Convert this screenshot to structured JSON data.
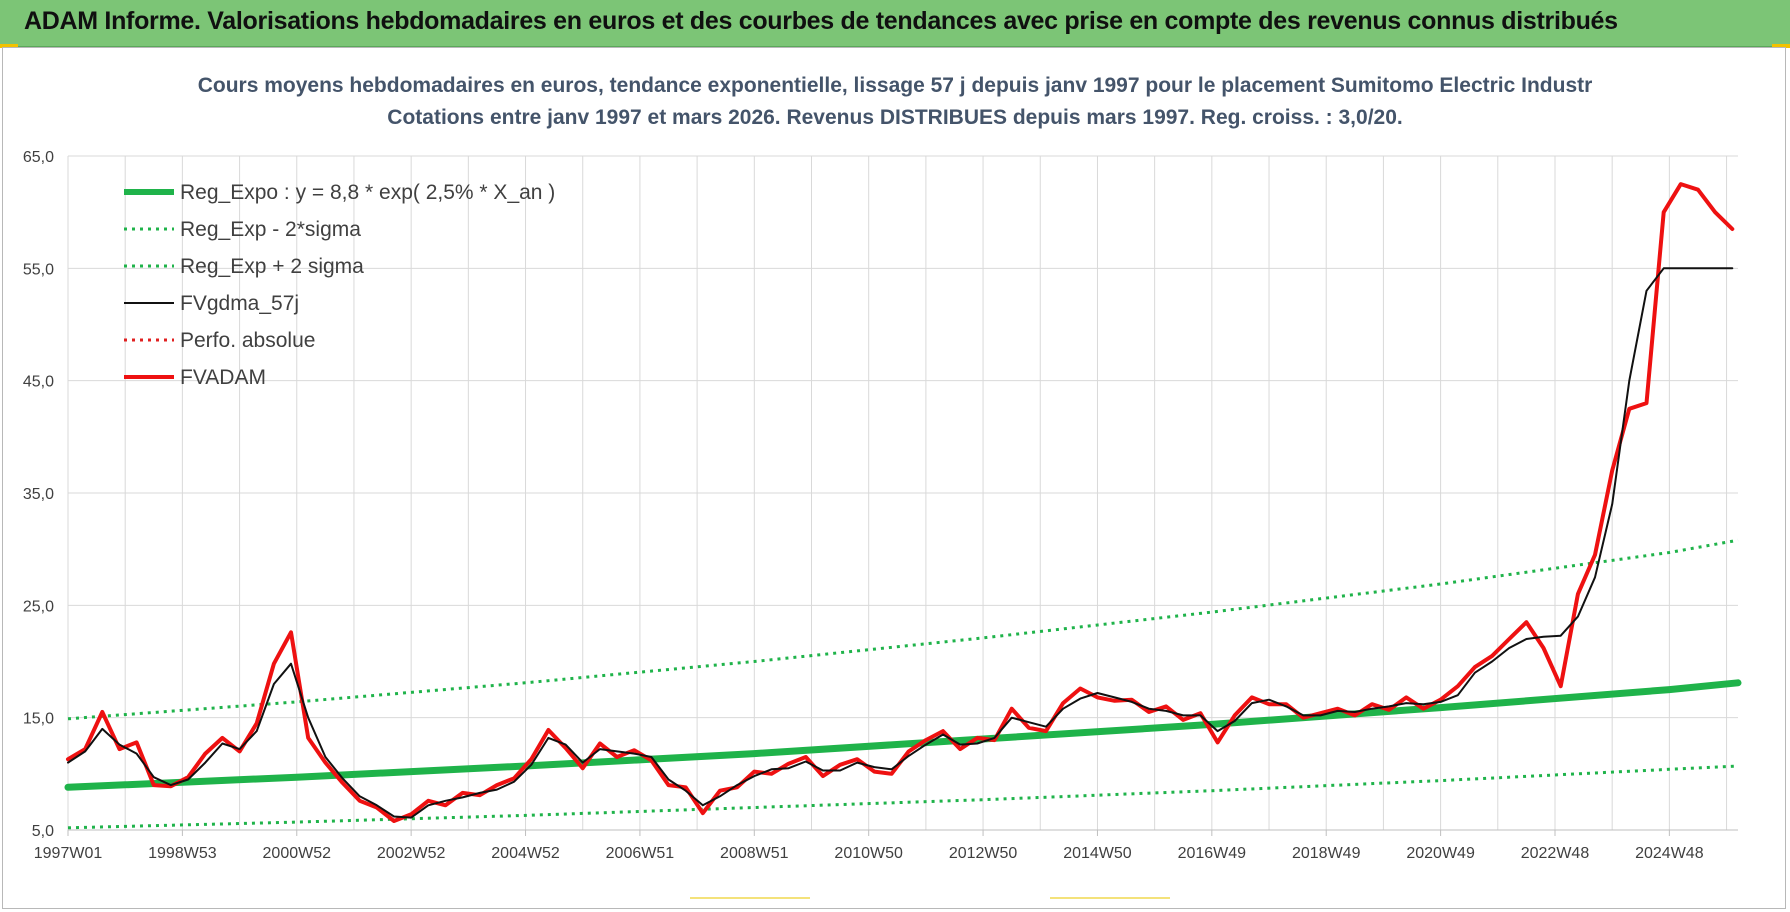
{
  "banner": {
    "text": "ADAM Informe. Valorisations hebdomadaires en euros et des courbes de tendances avec prise en compte des revenus connus distribués",
    "background": "#7cc576"
  },
  "chart_data": {
    "type": "line",
    "title": [
      "Cours moyens hebdomadaires en euros, tendance exponentielle, lissage 57 j depuis janv 1997  pour le placement Sumitomo Electric Industr",
      "Cotations entre janv 1997 et mars 2026. Revenus DISTRIBUES depuis mars 1997.  Reg. croiss. : 3,0/20."
    ],
    "xlabel": "",
    "ylabel": "",
    "ylim": [
      5,
      65
    ],
    "yticks": [
      "5,0",
      "15,0",
      "25,0",
      "35,0",
      "45,0",
      "55,0",
      "65,0"
    ],
    "xlim": [
      1997.0,
      2026.2
    ],
    "xticks": [
      {
        "label": "1997W01",
        "x": 1997.0
      },
      {
        "label": "1998W53",
        "x": 1999.0
      },
      {
        "label": "2000W52",
        "x": 2001.0
      },
      {
        "label": "2002W52",
        "x": 2003.0
      },
      {
        "label": "2004W52",
        "x": 2005.0
      },
      {
        "label": "2006W51",
        "x": 2007.0
      },
      {
        "label": "2008W51",
        "x": 2009.0
      },
      {
        "label": "2010W50",
        "x": 2011.0
      },
      {
        "label": "2012W50",
        "x": 2013.0
      },
      {
        "label": "2014W50",
        "x": 2015.0
      },
      {
        "label": "2016W49",
        "x": 2017.0
      },
      {
        "label": "2018W49",
        "x": 2019.0
      },
      {
        "label": "2020W49",
        "x": 2021.0
      },
      {
        "label": "2022W48",
        "x": 2023.0
      },
      {
        "label": "2024W48",
        "x": 2025.0
      }
    ],
    "grid": true,
    "legend_position": "top-left",
    "series": [
      {
        "name": "Reg_Expo : y = 8,8 * exp( 2,5% *  X_an )",
        "style": "solid-thick",
        "color": "#1fb34a",
        "x": [
          1997.0,
          2001.0,
          2005.0,
          2009.0,
          2013.0,
          2017.0,
          2021.0,
          2025.0,
          2026.2
        ],
        "values": [
          8.8,
          9.7,
          10.7,
          11.8,
          13.1,
          14.4,
          15.9,
          17.5,
          18.1
        ]
      },
      {
        "name": "Reg_Exp - 2*sigma",
        "style": "dotted",
        "color": "#1fb34a",
        "x": [
          1997.0,
          2001.0,
          2005.0,
          2009.0,
          2013.0,
          2017.0,
          2021.0,
          2025.0,
          2026.2
        ],
        "values": [
          5.2,
          5.7,
          6.3,
          7.0,
          7.7,
          8.5,
          9.4,
          10.4,
          10.7
        ]
      },
      {
        "name": "Reg_Exp + 2 sigma",
        "style": "dotted",
        "color": "#1fb34a",
        "x": [
          1997.0,
          2001.0,
          2005.0,
          2009.0,
          2013.0,
          2017.0,
          2021.0,
          2025.0,
          2026.2
        ],
        "values": [
          14.9,
          16.4,
          18.1,
          20.0,
          22.1,
          24.4,
          26.9,
          29.7,
          30.8
        ]
      },
      {
        "name": "FVgdma_57j",
        "style": "solid-thin",
        "color": "#111111",
        "x": [
          1997.0,
          1997.3,
          1997.6,
          1997.9,
          1998.2,
          1998.5,
          1998.8,
          1999.1,
          1999.4,
          1999.7,
          2000.0,
          2000.3,
          2000.6,
          2000.9,
          2001.2,
          2001.5,
          2001.8,
          2002.1,
          2002.4,
          2002.7,
          2003.0,
          2003.3,
          2003.6,
          2003.9,
          2004.2,
          2004.5,
          2004.8,
          2005.1,
          2005.4,
          2005.7,
          2006.0,
          2006.3,
          2006.6,
          2006.9,
          2007.2,
          2007.5,
          2007.8,
          2008.1,
          2008.4,
          2008.7,
          2009.0,
          2009.3,
          2009.6,
          2009.9,
          2010.2,
          2010.5,
          2010.8,
          2011.1,
          2011.4,
          2011.7,
          2012.0,
          2012.3,
          2012.6,
          2012.9,
          2013.2,
          2013.5,
          2013.8,
          2014.1,
          2014.4,
          2014.7,
          2015.0,
          2015.3,
          2015.6,
          2015.9,
          2016.2,
          2016.5,
          2016.8,
          2017.1,
          2017.4,
          2017.7,
          2018.0,
          2018.3,
          2018.6,
          2018.9,
          2019.2,
          2019.5,
          2019.8,
          2020.1,
          2020.4,
          2020.7,
          2021.0,
          2021.3,
          2021.6,
          2021.9,
          2022.2,
          2022.5,
          2022.8,
          2023.1,
          2023.4,
          2023.7,
          2024.0,
          2024.3,
          2024.6,
          2024.9,
          2025.2,
          2025.5,
          2025.8,
          2026.1
        ],
        "values": [
          11.0,
          12.0,
          14.0,
          12.6,
          11.8,
          9.7,
          9.0,
          9.5,
          11.0,
          12.7,
          12.2,
          13.8,
          18.0,
          19.8,
          15.0,
          11.5,
          9.6,
          8.0,
          7.2,
          6.2,
          6.1,
          7.2,
          7.6,
          7.9,
          8.3,
          8.6,
          9.3,
          10.8,
          13.2,
          12.6,
          11.0,
          12.2,
          12.0,
          11.8,
          11.5,
          9.5,
          8.5,
          7.2,
          8.0,
          9.0,
          9.8,
          10.4,
          10.5,
          11.1,
          10.3,
          10.3,
          11.0,
          10.6,
          10.4,
          11.6,
          12.6,
          13.5,
          12.6,
          12.7,
          13.2,
          15.0,
          14.6,
          14.2,
          15.8,
          16.7,
          17.2,
          16.8,
          16.4,
          15.8,
          15.6,
          15.2,
          15.2,
          13.8,
          14.7,
          16.3,
          16.6,
          16.0,
          15.2,
          15.2,
          15.6,
          15.5,
          15.8,
          16.0,
          16.3,
          16.2,
          16.4,
          17.0,
          19.0,
          20.0,
          21.2,
          22.0,
          22.2,
          22.3,
          24.0,
          27.5,
          34.0,
          45.0,
          53.0,
          55.0,
          55.0,
          55.0,
          55.0,
          55.0
        ]
      },
      {
        "name": "Perfo. absolue",
        "style": "dotted",
        "color": "#e02020",
        "x": [],
        "values": []
      },
      {
        "name": "FVADAM",
        "style": "solid-thick",
        "color": "#ee1111",
        "x": [
          1997.0,
          1997.3,
          1997.6,
          1997.9,
          1998.2,
          1998.5,
          1998.8,
          1999.1,
          1999.4,
          1999.7,
          2000.0,
          2000.3,
          2000.6,
          2000.9,
          2001.2,
          2001.5,
          2001.8,
          2002.1,
          2002.4,
          2002.7,
          2003.0,
          2003.3,
          2003.6,
          2003.9,
          2004.2,
          2004.5,
          2004.8,
          2005.1,
          2005.4,
          2005.7,
          2006.0,
          2006.3,
          2006.6,
          2006.9,
          2007.2,
          2007.5,
          2007.8,
          2008.1,
          2008.4,
          2008.7,
          2009.0,
          2009.3,
          2009.6,
          2009.9,
          2010.2,
          2010.5,
          2010.8,
          2011.1,
          2011.4,
          2011.7,
          2012.0,
          2012.3,
          2012.6,
          2012.9,
          2013.2,
          2013.5,
          2013.8,
          2014.1,
          2014.4,
          2014.7,
          2015.0,
          2015.3,
          2015.6,
          2015.9,
          2016.2,
          2016.5,
          2016.8,
          2017.1,
          2017.4,
          2017.7,
          2018.0,
          2018.3,
          2018.6,
          2018.9,
          2019.2,
          2019.5,
          2019.8,
          2020.1,
          2020.4,
          2020.7,
          2021.0,
          2021.3,
          2021.6,
          2021.9,
          2022.2,
          2022.5,
          2022.8,
          2023.1,
          2023.4,
          2023.7,
          2024.0,
          2024.3,
          2024.6,
          2024.9,
          2025.2,
          2025.5,
          2025.8,
          2026.1
        ],
        "values": [
          11.3,
          12.2,
          15.5,
          12.2,
          12.8,
          9.0,
          8.9,
          9.7,
          11.8,
          13.2,
          12.0,
          14.5,
          19.8,
          22.6,
          13.2,
          11.0,
          9.2,
          7.6,
          7.0,
          5.8,
          6.4,
          7.6,
          7.2,
          8.3,
          8.1,
          9.0,
          9.6,
          11.3,
          13.9,
          12.3,
          10.5,
          12.7,
          11.5,
          12.1,
          11.2,
          9.0,
          8.8,
          6.5,
          8.5,
          8.8,
          10.2,
          10.0,
          10.9,
          11.5,
          9.8,
          10.8,
          11.3,
          10.2,
          10.0,
          12.0,
          13.0,
          13.8,
          12.2,
          13.2,
          13.0,
          15.8,
          14.1,
          13.8,
          16.3,
          17.6,
          16.8,
          16.5,
          16.6,
          15.5,
          16.0,
          14.8,
          15.4,
          12.8,
          15.2,
          16.8,
          16.2,
          16.2,
          15.0,
          15.4,
          15.8,
          15.2,
          16.2,
          15.7,
          16.8,
          15.8,
          16.6,
          17.8,
          19.5,
          20.5,
          22.0,
          23.5,
          21.2,
          17.8,
          26.0,
          29.5,
          37.0,
          42.5,
          43.0,
          60.0,
          62.5,
          62.0,
          60.0,
          58.5
        ]
      }
    ]
  },
  "colors": {
    "reg_expo": "#1fb34a",
    "fvadam": "#ee1111",
    "fvgdma": "#111111",
    "perfo": "#e02020",
    "title": "#44546a",
    "grid": "#d9d9d9"
  }
}
